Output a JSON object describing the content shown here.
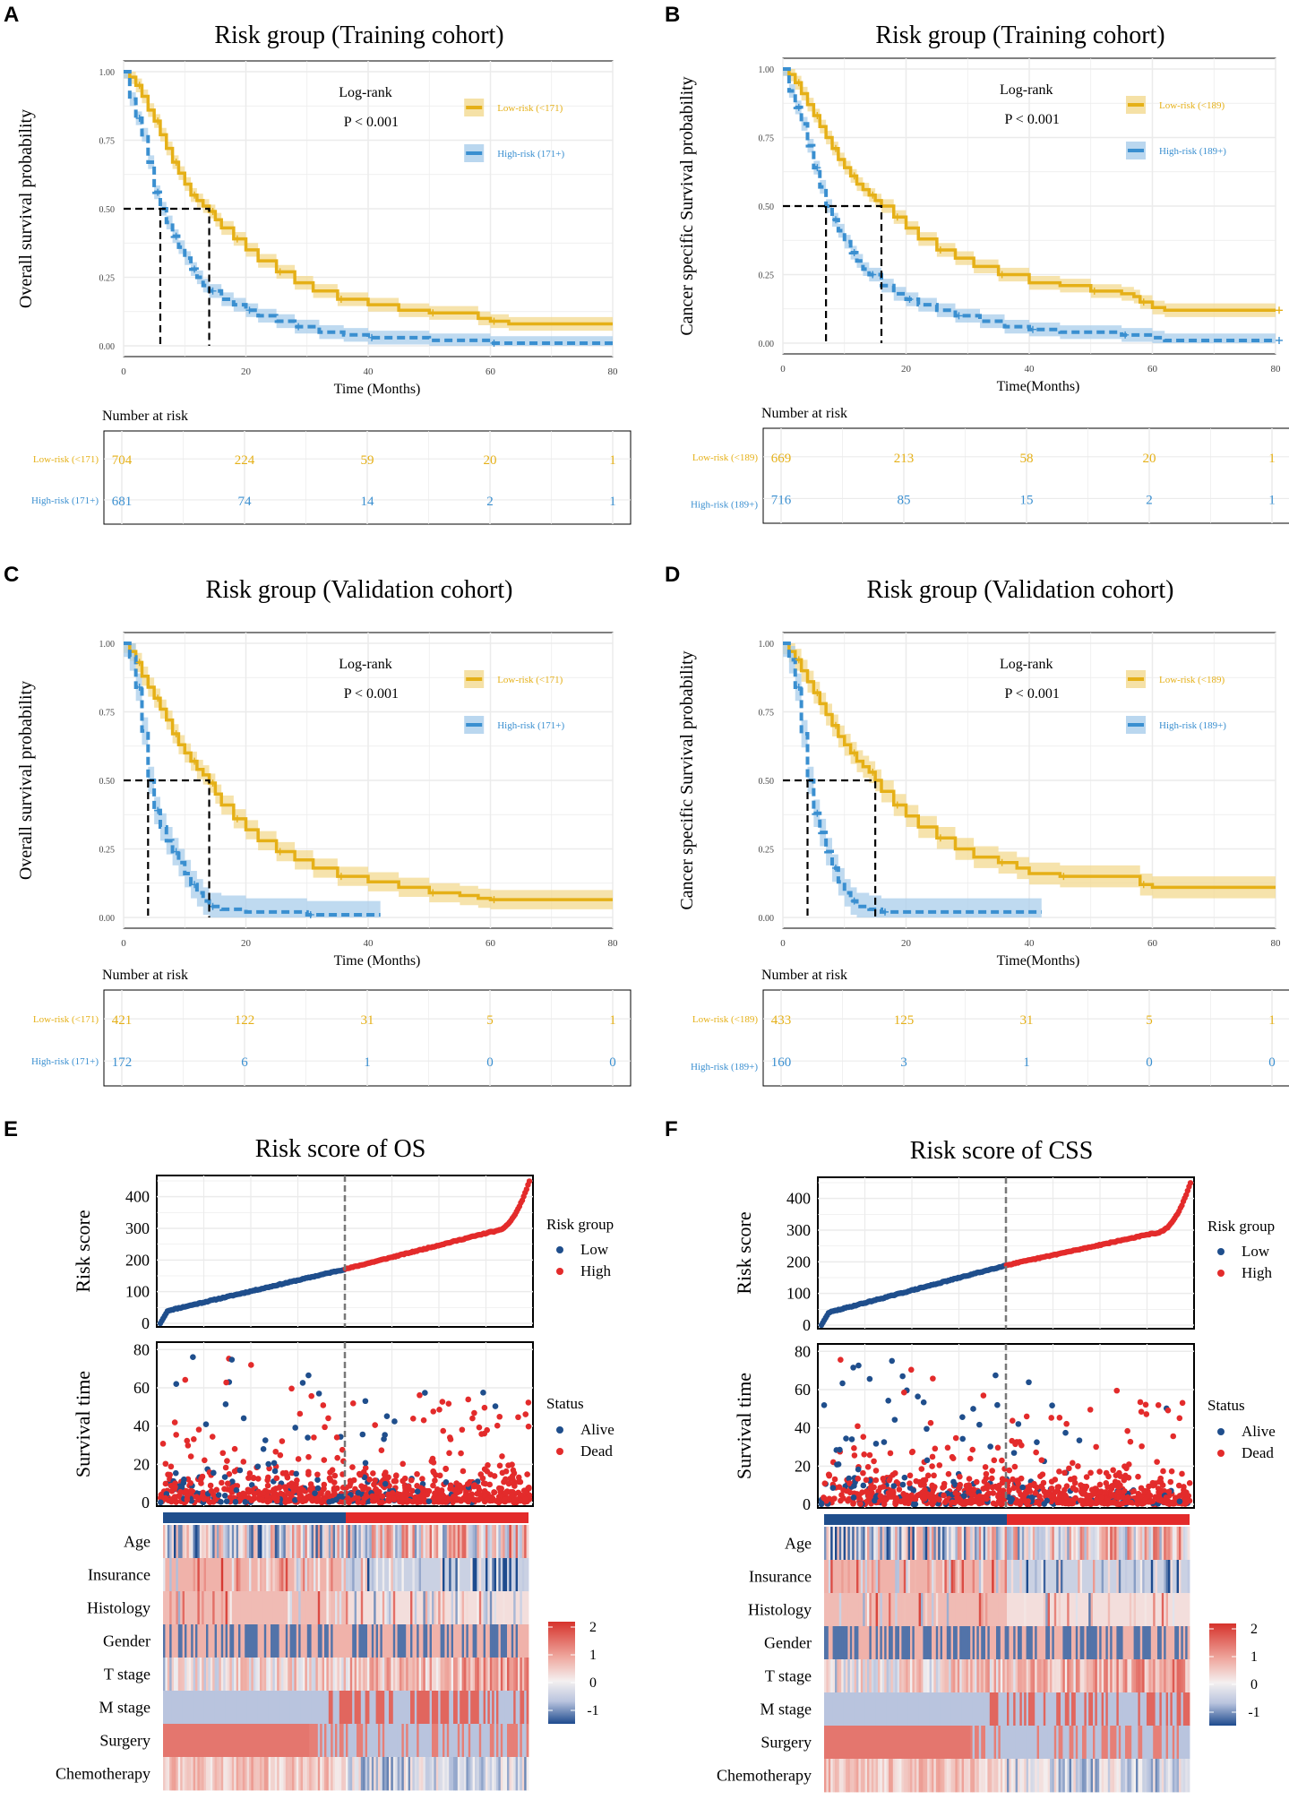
{
  "colors": {
    "low": "#E5B017",
    "low_band": "#F3D990",
    "high": "#3A8FD0",
    "high_band": "#A9CDEB",
    "scatter_low": "#1F4E8C",
    "scatter_high": "#E32B2B",
    "heat_hi": "#D6332C",
    "heat_mid": "#F4F0F0",
    "heat_lo": "#1E4B8E",
    "grid": "#EBEBEB"
  },
  "km_panels": [
    {
      "letter": "A",
      "title": "Risk group (Training cohort)",
      "ylabel": "Overall survival probability",
      "xlabel": "Time (Months)",
      "logrank": "Log-rank",
      "pvalue": "P < 0.001",
      "legend_low": "Low-risk (<171)",
      "legend_high": "High-risk (171+)",
      "xlim": [
        0,
        80
      ],
      "xticks": [
        "0",
        "20",
        "40",
        "60",
        "80"
      ],
      "yticks": [
        "0.00",
        "0.25",
        "0.50",
        "0.75",
        "1.00"
      ],
      "median_low": 14,
      "median_high": 6,
      "low_curve": [
        [
          0,
          1
        ],
        [
          1,
          0.98
        ],
        [
          2,
          0.95
        ],
        [
          3,
          0.91
        ],
        [
          4,
          0.86
        ],
        [
          5,
          0.82
        ],
        [
          6,
          0.77
        ],
        [
          7,
          0.72
        ],
        [
          8,
          0.67
        ],
        [
          9,
          0.63
        ],
        [
          10,
          0.59
        ],
        [
          11,
          0.55
        ],
        [
          12,
          0.53
        ],
        [
          13,
          0.51
        ],
        [
          14,
          0.49
        ],
        [
          15,
          0.46
        ],
        [
          16,
          0.43
        ],
        [
          18,
          0.39
        ],
        [
          20,
          0.35
        ],
        [
          22,
          0.31
        ],
        [
          25,
          0.27
        ],
        [
          28,
          0.23
        ],
        [
          31,
          0.2
        ],
        [
          35,
          0.17
        ],
        [
          40,
          0.15
        ],
        [
          45,
          0.13
        ],
        [
          50,
          0.12
        ],
        [
          55,
          0.12
        ],
        [
          58,
          0.1
        ],
        [
          60,
          0.09
        ],
        [
          63,
          0.08
        ],
        [
          80,
          0.08
        ]
      ],
      "high_curve": [
        [
          0,
          1
        ],
        [
          1,
          0.9
        ],
        [
          2,
          0.83
        ],
        [
          3,
          0.77
        ],
        [
          4,
          0.67
        ],
        [
          5,
          0.56
        ],
        [
          6,
          0.5
        ],
        [
          7,
          0.45
        ],
        [
          8,
          0.4
        ],
        [
          9,
          0.36
        ],
        [
          10,
          0.32
        ],
        [
          11,
          0.28
        ],
        [
          12,
          0.25
        ],
        [
          13,
          0.22
        ],
        [
          14,
          0.2
        ],
        [
          16,
          0.17
        ],
        [
          18,
          0.15
        ],
        [
          20,
          0.13
        ],
        [
          22,
          0.11
        ],
        [
          25,
          0.09
        ],
        [
          28,
          0.07
        ],
        [
          32,
          0.05
        ],
        [
          36,
          0.04
        ],
        [
          40,
          0.03
        ],
        [
          50,
          0.02
        ],
        [
          55,
          0.02
        ],
        [
          60,
          0.01
        ],
        [
          80,
          0.01
        ]
      ],
      "band_low": 0.025,
      "band_high": 0.025,
      "high_end": 80,
      "risk_title": "Number at risk",
      "risk_low_label": "Low-risk (<171)",
      "risk_high_label": "High-risk (171+)",
      "risk_low": [
        "704",
        "224",
        "59",
        "20",
        "1"
      ],
      "risk_high": [
        "681",
        "74",
        "14",
        "2",
        "1"
      ]
    },
    {
      "letter": "B",
      "title": "Risk group (Training cohort)",
      "ylabel": "Cancer specific Survival probability",
      "xlabel": "Time(Months)",
      "logrank": "Log-rank",
      "pvalue": "P < 0.001",
      "legend_low": "Low-risk (<189)",
      "legend_high": "High-risk (189+)",
      "xlim": [
        0,
        80
      ],
      "xticks": [
        "0",
        "20",
        "40",
        "60",
        "80"
      ],
      "yticks": [
        "0.00",
        "0.25",
        "0.50",
        "0.75",
        "1.00"
      ],
      "median_low": 16,
      "median_high": 7,
      "low_curve": [
        [
          0,
          1
        ],
        [
          1,
          0.98
        ],
        [
          2,
          0.95
        ],
        [
          3,
          0.91
        ],
        [
          4,
          0.87
        ],
        [
          5,
          0.83
        ],
        [
          6,
          0.79
        ],
        [
          7,
          0.75
        ],
        [
          8,
          0.71
        ],
        [
          9,
          0.67
        ],
        [
          10,
          0.64
        ],
        [
          11,
          0.61
        ],
        [
          12,
          0.58
        ],
        [
          13,
          0.56
        ],
        [
          14,
          0.54
        ],
        [
          15,
          0.52
        ],
        [
          16,
          0.5
        ],
        [
          18,
          0.46
        ],
        [
          20,
          0.42
        ],
        [
          22,
          0.38
        ],
        [
          25,
          0.34
        ],
        [
          28,
          0.31
        ],
        [
          31,
          0.28
        ],
        [
          35,
          0.25
        ],
        [
          40,
          0.22
        ],
        [
          45,
          0.21
        ],
        [
          50,
          0.19
        ],
        [
          55,
          0.18
        ],
        [
          57,
          0.17
        ],
        [
          58,
          0.15
        ],
        [
          60,
          0.13
        ],
        [
          62,
          0.12
        ],
        [
          80,
          0.12
        ]
      ],
      "high_curve": [
        [
          0,
          1
        ],
        [
          1,
          0.92
        ],
        [
          2,
          0.86
        ],
        [
          3,
          0.8
        ],
        [
          4,
          0.72
        ],
        [
          5,
          0.64
        ],
        [
          6,
          0.57
        ],
        [
          7,
          0.5
        ],
        [
          8,
          0.45
        ],
        [
          9,
          0.41
        ],
        [
          10,
          0.37
        ],
        [
          11,
          0.33
        ],
        [
          12,
          0.3
        ],
        [
          13,
          0.27
        ],
        [
          14,
          0.25
        ],
        [
          16,
          0.21
        ],
        [
          18,
          0.18
        ],
        [
          20,
          0.16
        ],
        [
          22,
          0.14
        ],
        [
          25,
          0.12
        ],
        [
          28,
          0.1
        ],
        [
          32,
          0.08
        ],
        [
          36,
          0.06
        ],
        [
          40,
          0.05
        ],
        [
          45,
          0.04
        ],
        [
          50,
          0.04
        ],
        [
          55,
          0.03
        ],
        [
          60,
          0.02
        ],
        [
          62,
          0.01
        ],
        [
          80,
          0.01
        ]
      ],
      "band_low": 0.025,
      "band_high": 0.025,
      "high_end": 80,
      "risk_title": "Number at risk",
      "risk_low_label": "Low-risk (<189)",
      "risk_high_label": "High-risk (189+)",
      "risk_low": [
        "669",
        "213",
        "58",
        "20",
        "1"
      ],
      "risk_high": [
        "716",
        "85",
        "15",
        "2",
        "1"
      ]
    },
    {
      "letter": "C",
      "title": "Risk group (Validation cohort)",
      "ylabel": "Overall survival probability",
      "xlabel": "Time (Months)",
      "logrank": "Log-rank",
      "pvalue": "P < 0.001",
      "legend_low": "Low-risk (<171)",
      "legend_high": "High-risk (171+)",
      "xlim": [
        0,
        80
      ],
      "xticks": [
        "0",
        "20",
        "40",
        "60",
        "80"
      ],
      "yticks": [
        "0.00",
        "0.25",
        "0.50",
        "0.75",
        "1.00"
      ],
      "median_low": 14,
      "median_high": 4,
      "low_curve": [
        [
          0,
          1
        ],
        [
          1,
          0.97
        ],
        [
          2,
          0.93
        ],
        [
          3,
          0.88
        ],
        [
          4,
          0.84
        ],
        [
          5,
          0.8
        ],
        [
          6,
          0.76
        ],
        [
          7,
          0.72
        ],
        [
          8,
          0.67
        ],
        [
          9,
          0.63
        ],
        [
          10,
          0.6
        ],
        [
          11,
          0.57
        ],
        [
          12,
          0.54
        ],
        [
          13,
          0.52
        ],
        [
          14,
          0.49
        ],
        [
          15,
          0.45
        ],
        [
          16,
          0.41
        ],
        [
          18,
          0.36
        ],
        [
          20,
          0.32
        ],
        [
          22,
          0.28
        ],
        [
          25,
          0.24
        ],
        [
          28,
          0.21
        ],
        [
          31,
          0.18
        ],
        [
          35,
          0.15
        ],
        [
          40,
          0.13
        ],
        [
          45,
          0.11
        ],
        [
          50,
          0.09
        ],
        [
          55,
          0.08
        ],
        [
          58,
          0.07
        ],
        [
          60,
          0.065
        ],
        [
          80,
          0.065
        ]
      ],
      "high_curve": [
        [
          0,
          1
        ],
        [
          1,
          0.95
        ],
        [
          2,
          0.84
        ],
        [
          3,
          0.68
        ],
        [
          4,
          0.5
        ],
        [
          5,
          0.39
        ],
        [
          6,
          0.33
        ],
        [
          7,
          0.28
        ],
        [
          8,
          0.24
        ],
        [
          9,
          0.2
        ],
        [
          10,
          0.16
        ],
        [
          11,
          0.12
        ],
        [
          12,
          0.09
        ],
        [
          13,
          0.06
        ],
        [
          14,
          0.04
        ],
        [
          16,
          0.03
        ],
        [
          20,
          0.02
        ],
        [
          30,
          0.01
        ],
        [
          42,
          0.01
        ]
      ],
      "band_low": 0.035,
      "band_high": 0.05,
      "high_end": 42,
      "risk_title": "Number at risk",
      "risk_low_label": "Low-risk (<171)",
      "risk_high_label": "High-risk (171+)",
      "risk_low": [
        "421",
        "122",
        "31",
        "5",
        "1"
      ],
      "risk_high": [
        "172",
        "6",
        "1",
        "0",
        "0"
      ]
    },
    {
      "letter": "D",
      "title": "Risk group (Validation cohort)",
      "ylabel": "Cancer specific Survival probability",
      "xlabel": "Time(Months)",
      "logrank": "Log-rank",
      "pvalue": "P < 0.001",
      "legend_low": "Low-risk (<189)",
      "legend_high": "High-risk (189+)",
      "xlim": [
        0,
        80
      ],
      "xticks": [
        "0",
        "20",
        "40",
        "60",
        "80"
      ],
      "yticks": [
        "0.00",
        "0.25",
        "0.50",
        "0.75",
        "1.00"
      ],
      "median_low": 15,
      "median_high": 4,
      "low_curve": [
        [
          0,
          1
        ],
        [
          1,
          0.97
        ],
        [
          2,
          0.94
        ],
        [
          3,
          0.9
        ],
        [
          4,
          0.86
        ],
        [
          5,
          0.82
        ],
        [
          6,
          0.78
        ],
        [
          7,
          0.74
        ],
        [
          8,
          0.7
        ],
        [
          9,
          0.66
        ],
        [
          10,
          0.63
        ],
        [
          11,
          0.6
        ],
        [
          12,
          0.57
        ],
        [
          13,
          0.55
        ],
        [
          14,
          0.53
        ],
        [
          15,
          0.5
        ],
        [
          16,
          0.46
        ],
        [
          18,
          0.41
        ],
        [
          20,
          0.37
        ],
        [
          22,
          0.33
        ],
        [
          25,
          0.29
        ],
        [
          28,
          0.25
        ],
        [
          31,
          0.22
        ],
        [
          35,
          0.2
        ],
        [
          38,
          0.18
        ],
        [
          40,
          0.16
        ],
        [
          45,
          0.15
        ],
        [
          50,
          0.15
        ],
        [
          55,
          0.15
        ],
        [
          58,
          0.12
        ],
        [
          60,
          0.11
        ],
        [
          80,
          0.11
        ]
      ],
      "high_curve": [
        [
          0,
          1
        ],
        [
          1,
          0.94
        ],
        [
          2,
          0.84
        ],
        [
          3,
          0.67
        ],
        [
          4,
          0.5
        ],
        [
          5,
          0.38
        ],
        [
          6,
          0.31
        ],
        [
          7,
          0.24
        ],
        [
          8,
          0.18
        ],
        [
          9,
          0.13
        ],
        [
          10,
          0.09
        ],
        [
          11,
          0.06
        ],
        [
          12,
          0.04
        ],
        [
          14,
          0.03
        ],
        [
          16,
          0.02
        ],
        [
          30,
          0.02
        ],
        [
          42,
          0.02
        ]
      ],
      "band_low": 0.04,
      "band_high": 0.05,
      "high_end": 42,
      "risk_title": "Number at risk",
      "risk_low_label": "Low-risk (<189)",
      "risk_high_label": "High-risk (189+)",
      "risk_low": [
        "433",
        "125",
        "31",
        "5",
        "1"
      ],
      "risk_high": [
        "160",
        "3",
        "1",
        "0",
        "0"
      ]
    }
  ],
  "risk_panels": [
    {
      "letter": "E",
      "title": "Risk score of OS",
      "risk_ylabel": "Risk score",
      "surv_ylabel": "Survival time",
      "risk_yticks": [
        "0",
        "100",
        "200",
        "300",
        "400"
      ],
      "surv_yticks": [
        "0",
        "20",
        "40",
        "60",
        "80"
      ],
      "cutoff": 171,
      "cutoff_frac": 0.5,
      "risk_legend_title": "Risk group",
      "risk_legend": [
        "Low",
        "High"
      ],
      "status_legend_title": "Status",
      "status_legend": [
        "Alive",
        "Dead"
      ],
      "variables": [
        "Age",
        "Insurance",
        "Histology",
        "Gender",
        "T stage",
        "M stage",
        "Surgery",
        "Chemotherapy"
      ],
      "colorbar_ticks": [
        "2",
        "1",
        "0",
        "-1"
      ]
    },
    {
      "letter": "F",
      "title": "Risk score of CSS",
      "risk_ylabel": "Risk score",
      "surv_ylabel": "Survival time",
      "risk_yticks": [
        "0",
        "100",
        "200",
        "300",
        "400"
      ],
      "surv_yticks": [
        "0",
        "20",
        "40",
        "60",
        "80"
      ],
      "cutoff": 189,
      "cutoff_frac": 0.5,
      "risk_legend_title": "Risk group",
      "risk_legend": [
        "Low",
        "High"
      ],
      "status_legend_title": "Status",
      "status_legend": [
        "Alive",
        "Dead"
      ],
      "variables": [
        "Age",
        "Insurance",
        "Histology",
        "Gender",
        "T stage",
        "M stage",
        "Surgery",
        "Chemotherapy"
      ],
      "colorbar_ticks": [
        "2",
        "1",
        "0",
        "-1"
      ]
    }
  ],
  "chart_data": [
    {
      "type": "line",
      "panel": "A",
      "title": "Risk group (Training cohort)",
      "xlabel": "Time (Months)",
      "ylabel": "Overall survival probability",
      "xlim": [
        0,
        80
      ],
      "ylim": [
        0,
        1
      ],
      "series": [
        {
          "name": "Low-risk (<171)",
          "median": 14
        },
        {
          "name": "High-risk (171+)",
          "median": 6
        }
      ]
    },
    {
      "type": "line",
      "panel": "B",
      "title": "Risk group (Training cohort)",
      "xlabel": "Time(Months)",
      "ylabel": "Cancer specific Survival probability",
      "xlim": [
        0,
        80
      ],
      "ylim": [
        0,
        1
      ],
      "series": [
        {
          "name": "Low-risk (<189)",
          "median": 16
        },
        {
          "name": "High-risk (189+)",
          "median": 7
        }
      ]
    },
    {
      "type": "line",
      "panel": "C",
      "title": "Risk group (Validation cohort)",
      "xlabel": "Time (Months)",
      "ylabel": "Overall survival probability",
      "xlim": [
        0,
        80
      ],
      "ylim": [
        0,
        1
      ],
      "series": [
        {
          "name": "Low-risk (<171)",
          "median": 14
        },
        {
          "name": "High-risk (171+)",
          "median": 4
        }
      ]
    },
    {
      "type": "line",
      "panel": "D",
      "title": "Risk group (Validation cohort)",
      "xlabel": "Time(Months)",
      "ylabel": "Cancer specific Survival probability",
      "xlim": [
        0,
        80
      ],
      "ylim": [
        0,
        1
      ],
      "series": [
        {
          "name": "Low-risk (<189)",
          "median": 15
        },
        {
          "name": "High-risk (189+)",
          "median": 4
        }
      ]
    },
    {
      "type": "scatter",
      "panel": "E",
      "title": "Risk score of OS",
      "ylabel": "Risk score",
      "ylim": [
        0,
        450
      ],
      "cutoff": 171
    },
    {
      "type": "scatter",
      "panel": "F",
      "title": "Risk score of CSS",
      "ylabel": "Risk score",
      "ylim": [
        0,
        450
      ],
      "cutoff": 189
    }
  ]
}
